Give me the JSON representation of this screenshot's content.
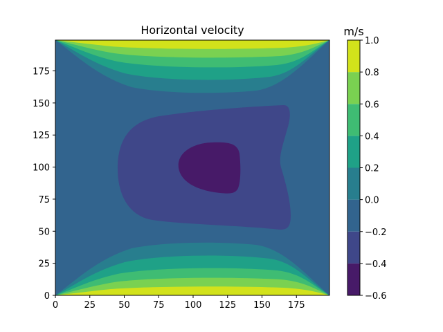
{
  "chart_data": {
    "type": "heatmap",
    "subtype": "filled-contour",
    "title": "Horizontal velocity",
    "xlabel": "",
    "ylabel": "",
    "xlim": [
      0,
      199
    ],
    "ylim": [
      0,
      199
    ],
    "x_ticks": [
      0,
      25,
      50,
      75,
      100,
      125,
      150,
      175
    ],
    "y_ticks": [
      0,
      25,
      50,
      75,
      100,
      125,
      150,
      175
    ],
    "colorbar": {
      "label": "m/s",
      "range": [
        -0.6,
        1.0
      ],
      "levels": [
        -0.6,
        -0.4,
        -0.2,
        0.0,
        0.2,
        0.4,
        0.6,
        0.8,
        1.0
      ],
      "tick_labels": [
        "−0.6",
        "−0.4",
        "−0.2",
        "0.0",
        "0.2",
        "0.4",
        "0.6",
        "0.8",
        "1.0"
      ],
      "colors": [
        "#471a68",
        "#3f4789",
        "#32648e",
        "#287e8e",
        "#1fa187",
        "#3fbc73",
        "#7ad151",
        "#d2e21b"
      ]
    },
    "contour_bands": [
      {
        "range": [
          -0.6,
          -0.4
        ],
        "region": "center",
        "approx_x": [
          90,
          135
        ],
        "approx_y": [
          79,
          120
        ]
      },
      {
        "range": [
          -0.4,
          -0.2
        ],
        "region": "middle",
        "approx_x": [
          48,
          183
        ],
        "approx_y": [
          51,
          148
        ]
      },
      {
        "range": [
          -0.2,
          0.0
        ],
        "region": "background",
        "approx_x": [
          0,
          199
        ],
        "approx_y": [
          0,
          199
        ]
      },
      {
        "range": [
          0.0,
          0.2
        ],
        "region": "top and bottom walls",
        "approx_y": [
          [
            0,
            41
          ],
          [
            159,
            199
          ]
        ]
      },
      {
        "range": [
          0.2,
          0.4
        ],
        "region": "top and bottom walls",
        "approx_y": [
          [
            0,
            30
          ],
          [
            171,
            199
          ]
        ]
      },
      {
        "range": [
          0.4,
          0.6
        ],
        "region": "top and bottom walls",
        "approx_y": [
          [
            0,
            21
          ],
          [
            180,
            199
          ]
        ]
      },
      {
        "range": [
          0.6,
          0.8
        ],
        "region": "top and bottom walls",
        "approx_y": [
          [
            0,
            14
          ],
          [
            186,
            199
          ]
        ]
      },
      {
        "range": [
          0.8,
          1.0
        ],
        "region": "top and bottom walls",
        "approx_y": [
          [
            0,
            7
          ],
          [
            192,
            199
          ]
        ]
      }
    ]
  }
}
